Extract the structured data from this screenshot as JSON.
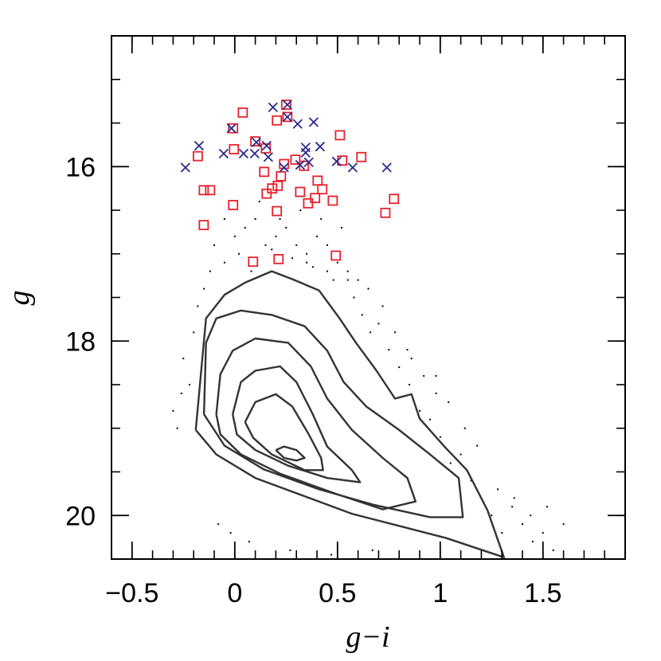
{
  "chart_data": {
    "type": "scatter",
    "xlabel": "g−i",
    "ylabel": "g",
    "xlim": [
      -0.6,
      1.9
    ],
    "ylim": [
      20.5,
      14.5
    ],
    "xticks": [
      {
        "value": -0.5,
        "label": "−0.5"
      },
      0,
      0.5,
      1,
      1.5
    ],
    "yticks": [
      16,
      18,
      20
    ],
    "xminor_ticks": [
      -0.5,
      -0.4,
      -0.3,
      -0.2,
      -0.1,
      0,
      0.1,
      0.2,
      0.3,
      0.4,
      0.5,
      0.6,
      0.7,
      0.8,
      0.9,
      1,
      1.1,
      1.2,
      1.3,
      1.4,
      1.5,
      1.6,
      1.7,
      1.8
    ],
    "yminor_ticks": [
      15,
      15.5,
      16,
      16.5,
      17,
      17.5,
      18,
      18.5,
      19,
      19.5,
      20
    ],
    "background": {
      "color": "#000000",
      "x": [
        -0.3,
        -0.25,
        -0.28,
        -0.22,
        -0.2,
        -0.18,
        -0.26,
        -0.15,
        -0.12,
        -0.1,
        -0.05,
        0.0,
        0.05,
        0.1,
        0.15,
        0.2,
        0.25,
        0.3,
        0.35,
        0.4,
        0.45,
        0.5,
        0.55,
        0.6,
        0.02,
        0.12,
        0.22,
        0.32,
        0.42,
        0.52,
        -0.05,
        0.08,
        0.18,
        0.28,
        0.38,
        0.48,
        0.58,
        0.62,
        0.66,
        0.7,
        0.75,
        0.8,
        0.85,
        0.9,
        0.95,
        1.0,
        1.05,
        1.1,
        1.15,
        1.2,
        1.25,
        1.3,
        1.35,
        1.4,
        1.45,
        1.5,
        1.55,
        1.6,
        0.72,
        0.78,
        0.84,
        0.92,
        0.98,
        1.04,
        1.12,
        1.18,
        0.65,
        0.55,
        0.45,
        0.35,
        -0.08,
        -0.02,
        0.07,
        0.27,
        0.47,
        0.67,
        1.28,
        1.36,
        1.44,
        1.52,
        0.86,
        0.98
      ],
      "y": [
        18.8,
        18.2,
        19.0,
        18.5,
        17.9,
        17.6,
        18.6,
        17.4,
        17.2,
        16.9,
        16.6,
        16.8,
        16.7,
        16.6,
        16.9,
        16.8,
        16.7,
        16.9,
        17.0,
        16.8,
        16.9,
        17.1,
        17.2,
        17.3,
        17.0,
        16.4,
        16.6,
        16.5,
        16.6,
        16.7,
        17.1,
        17.2,
        16.95,
        17.05,
        17.15,
        17.3,
        17.5,
        17.7,
        17.9,
        17.8,
        18.1,
        18.3,
        18.5,
        18.8,
        18.9,
        19.1,
        19.4,
        19.3,
        19.6,
        19.8,
        20.0,
        20.2,
        19.9,
        20.1,
        20.3,
        20.2,
        20.4,
        20.1,
        17.6,
        17.9,
        18.1,
        18.4,
        18.6,
        18.7,
        19.0,
        19.2,
        17.4,
        17.3,
        17.2,
        17.1,
        20.1,
        20.2,
        20.3,
        20.4,
        20.45,
        20.4,
        19.7,
        19.8,
        20.0,
        19.9,
        18.2,
        18.4
      ]
    },
    "contours": [
      {
        "color": "#333333",
        "x": [
          -0.19,
          -0.14,
          -0.05,
          0.05,
          0.18,
          0.28,
          0.41,
          0.51,
          0.59,
          0.69,
          0.78,
          0.86,
          0.9,
          1.02,
          1.13,
          1.23,
          1.31,
          1.03,
          0.57,
          0.1,
          -0.09,
          -0.19
        ],
        "y": [
          19.02,
          17.74,
          17.47,
          17.33,
          17.2,
          17.29,
          17.42,
          17.74,
          18.02,
          18.34,
          18.66,
          18.61,
          18.89,
          19.21,
          19.48,
          19.94,
          20.48,
          20.26,
          19.98,
          19.57,
          19.3,
          19.02
        ]
      },
      {
        "color": "#333333",
        "x": [
          -0.15,
          -0.14,
          -0.09,
          0.03,
          0.18,
          0.34,
          0.45,
          0.53,
          0.64,
          0.8,
          0.95,
          1.09,
          1.11,
          0.95,
          0.68,
          0.41,
          0.14,
          -0.05,
          -0.15
        ],
        "y": [
          18.84,
          18.02,
          17.74,
          17.65,
          17.7,
          17.83,
          18.11,
          18.47,
          18.75,
          19.02,
          19.3,
          19.57,
          20.02,
          20.02,
          19.88,
          19.7,
          19.47,
          19.2,
          18.84
        ]
      },
      {
        "color": "#333333",
        "x": [
          -0.09,
          -0.07,
          -0.01,
          0.1,
          0.26,
          0.37,
          0.45,
          0.57,
          0.72,
          0.84,
          0.88,
          0.72,
          0.49,
          0.22,
          0.03,
          -0.07,
          -0.09
        ],
        "y": [
          18.84,
          18.38,
          18.11,
          17.97,
          18.02,
          18.29,
          18.66,
          19.02,
          19.34,
          19.57,
          19.84,
          19.93,
          19.75,
          19.52,
          19.3,
          19.07,
          18.84
        ]
      },
      {
        "color": "#333333",
        "x": [
          -0.01,
          0.03,
          0.1,
          0.22,
          0.3,
          0.38,
          0.45,
          0.57,
          0.61,
          0.45,
          0.26,
          0.1,
          0.01,
          -0.01
        ],
        "y": [
          18.84,
          18.47,
          18.34,
          18.29,
          18.47,
          18.84,
          19.21,
          19.48,
          19.62,
          19.57,
          19.43,
          19.25,
          19.07,
          18.84
        ]
      },
      {
        "color": "#333333",
        "x": [
          0.05,
          0.1,
          0.2,
          0.28,
          0.36,
          0.42,
          0.43,
          0.34,
          0.18,
          0.09,
          0.05
        ],
        "y": [
          18.93,
          18.7,
          18.61,
          18.75,
          19.07,
          19.34,
          19.48,
          19.48,
          19.3,
          19.11,
          18.93
        ]
      },
      {
        "color": "#333333",
        "x": [
          0.2,
          0.24,
          0.3,
          0.34,
          0.3,
          0.24,
          0.2
        ],
        "y": [
          19.25,
          19.21,
          19.25,
          19.34,
          19.37,
          19.34,
          19.25
        ]
      }
    ],
    "series": [
      {
        "marker": "square",
        "color": "#e8202a",
        "x": [
          0.039,
          0.25,
          -0.008,
          0.205,
          0.1,
          -0.004,
          -0.18,
          0.151,
          0.295,
          0.337,
          0.523,
          0.512,
          0.616,
          0.143,
          0.225,
          0.24,
          0.182,
          0.209,
          0.155,
          0.318,
          0.357,
          0.403,
          0.426,
          0.391,
          0.477,
          -0.151,
          -0.12,
          -0.008,
          0.205,
          0.733,
          0.775,
          -0.151,
          0.089,
          0.213,
          0.492,
          0.256
        ],
        "y": [
          15.38,
          15.29,
          15.56,
          15.47,
          15.71,
          15.8,
          15.88,
          15.79,
          15.92,
          15.99,
          15.93,
          15.64,
          15.89,
          16.06,
          16.11,
          15.97,
          16.25,
          16.22,
          16.31,
          16.29,
          16.42,
          16.16,
          16.26,
          16.36,
          16.39,
          16.27,
          16.27,
          16.44,
          16.51,
          16.53,
          16.37,
          16.67,
          17.09,
          17.06,
          17.02,
          15.43
        ]
      },
      {
        "marker": "cross",
        "color": "#2a2a8c",
        "x": [
          -0.24,
          -0.174,
          -0.054,
          -0.016,
          0.043,
          0.097,
          0.105,
          0.155,
          0.163,
          0.186,
          0.256,
          0.256,
          0.306,
          0.24,
          0.318,
          0.345,
          0.345,
          0.36,
          0.384,
          0.415,
          0.496,
          0.574,
          0.74
        ],
        "y": [
          16.01,
          15.76,
          15.85,
          15.56,
          15.85,
          15.85,
          15.72,
          15.76,
          15.89,
          15.32,
          15.29,
          15.43,
          15.51,
          16.01,
          15.98,
          15.78,
          15.84,
          15.95,
          15.49,
          15.77,
          15.94,
          16.01,
          16.01
        ]
      }
    ]
  }
}
